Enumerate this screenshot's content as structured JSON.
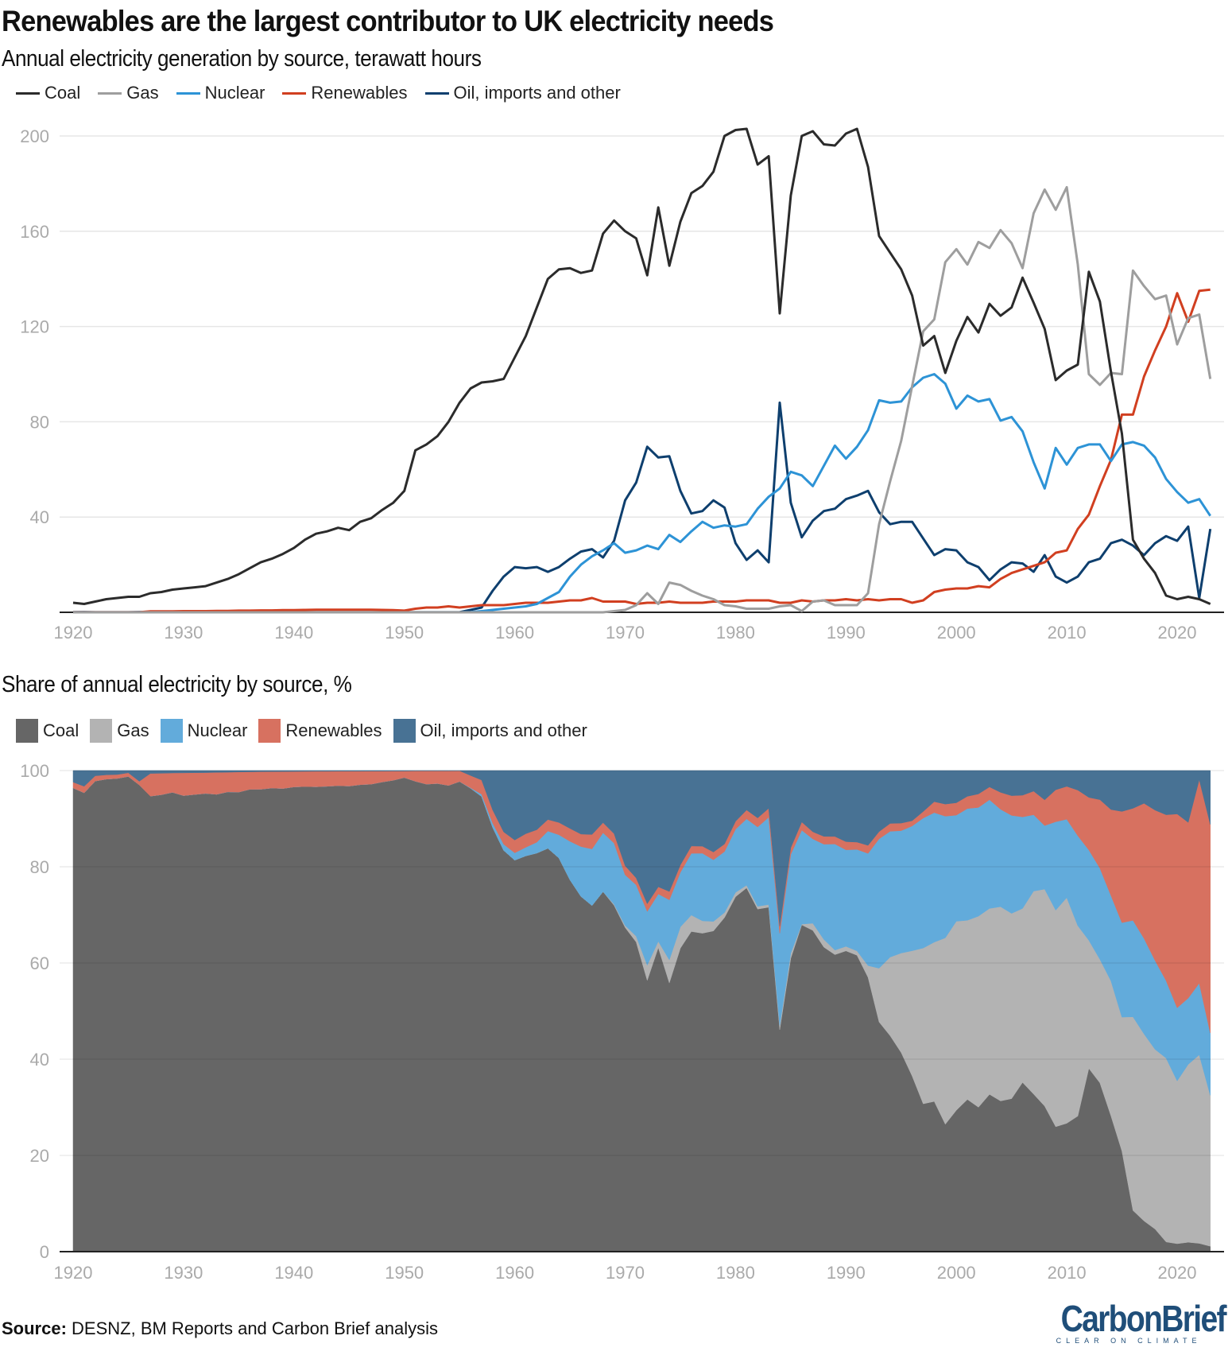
{
  "title": "Renewables are the largest contributor to UK electricity needs",
  "source_label": "Source:",
  "source_text": " DESNZ, BM Reports and Carbon Brief analysis",
  "logo": {
    "text": "CarbonBrief",
    "tagline": "CLEAR ON CLIMATE"
  },
  "colors": {
    "line": {
      "coal": "#2b2b2b",
      "gas": "#9e9e9e",
      "nuclear": "#2d93d6",
      "renewables": "#d13f20",
      "oil": "#0e3f6e"
    },
    "area": {
      "coal": "#666666",
      "gas": "#b3b3b3",
      "nuclear": "#62abdb",
      "renewables": "#d77160",
      "oil": "#487294"
    }
  },
  "chart_data": [
    {
      "type": "line",
      "title": "Annual electricity generation by source, terawatt hours",
      "x_start": 1920,
      "x_end": 2023,
      "xticks": [
        1920,
        1930,
        1940,
        1950,
        1960,
        1970,
        1980,
        1990,
        2000,
        2010,
        2020
      ],
      "yticks": [
        40,
        80,
        120,
        160,
        200
      ],
      "ylim": [
        0,
        200
      ],
      "grid": true,
      "legend_placement": "top-left",
      "series": [
        {
          "key": "coal",
          "name": "Coal",
          "values": [
            4,
            3.5,
            4.5,
            5.5,
            6,
            6.5,
            6.5,
            8,
            8.5,
            9.5,
            10,
            10.5,
            11,
            12.5,
            14,
            16,
            18.5,
            21,
            22.5,
            24.5,
            27,
            30.5,
            33,
            34,
            35.5,
            34.5,
            38,
            39.5,
            43,
            46,
            51,
            68,
            70.5,
            74,
            80,
            88,
            94,
            96.5,
            97,
            98,
            107,
            116,
            128,
            140,
            144,
            144.5,
            142.5,
            143.5,
            159,
            164.5,
            160,
            157,
            141.5,
            170,
            145.5,
            164,
            176,
            179,
            185,
            200,
            202.5,
            203,
            188,
            191.5,
            125.5,
            175,
            200,
            202,
            196.5,
            196,
            201,
            203,
            187,
            158,
            151,
            144,
            133,
            112,
            116,
            100.5,
            114,
            124,
            117.5,
            129.5,
            124.5,
            128,
            140.5,
            130,
            119,
            97.5,
            101.5,
            104,
            143,
            130.5,
            101,
            75,
            30.5,
            22.5,
            16.5,
            7,
            5.5,
            6.5,
            5.5,
            3.5
          ]
        },
        {
          "key": "gas",
          "name": "Gas",
          "values": [
            0,
            0,
            0,
            0,
            0,
            0,
            0,
            0,
            0,
            0,
            0,
            0,
            0,
            0,
            0,
            0,
            0,
            0,
            0,
            0,
            0,
            0,
            0,
            0,
            0,
            0,
            0,
            0,
            0,
            0,
            0,
            0,
            0,
            0,
            0,
            0,
            0,
            0,
            0,
            0,
            0,
            0,
            0,
            0,
            0,
            0,
            0,
            0,
            0,
            0.5,
            1,
            3,
            8,
            3.5,
            12.5,
            11.5,
            9,
            7,
            5.5,
            3,
            2.5,
            1.5,
            1.5,
            1.5,
            2.5,
            3,
            0.5,
            4.5,
            5,
            3,
            3,
            3,
            8,
            37,
            55,
            72,
            95,
            118,
            123,
            147,
            152.5,
            146,
            155.5,
            153,
            160.5,
            155,
            144.5,
            167.5,
            177.5,
            169,
            178.5,
            146,
            100,
            95.5,
            100.5,
            100,
            143.5,
            137,
            131.5,
            133,
            112.5,
            123.5,
            125,
            98
          ]
        },
        {
          "key": "nuclear",
          "name": "Nuclear",
          "values": [
            0,
            0,
            0,
            0,
            0,
            0,
            0,
            0,
            0,
            0,
            0,
            0,
            0,
            0,
            0,
            0,
            0,
            0,
            0,
            0,
            0,
            0,
            0,
            0,
            0,
            0,
            0,
            0,
            0,
            0,
            0,
            0,
            0,
            0,
            0,
            0,
            0.1,
            0.5,
            1,
            1.5,
            2,
            2.5,
            3.5,
            6,
            8.5,
            15,
            20,
            23.5,
            26,
            29,
            25,
            26,
            28,
            26.5,
            32.5,
            29.5,
            34,
            38,
            35.5,
            36.5,
            36,
            37,
            43.5,
            48.5,
            52,
            59,
            57.5,
            53,
            61.5,
            70,
            64.5,
            69.5,
            76.5,
            89,
            88,
            88.5,
            94.5,
            98.5,
            100,
            96,
            85.5,
            91,
            88.5,
            89.5,
            80.5,
            82,
            76,
            63,
            52,
            69,
            62,
            69,
            70.5,
            70.5,
            63.5,
            70.5,
            71.5,
            70,
            65,
            56,
            50.5,
            46,
            47.5,
            40.5
          ]
        },
        {
          "key": "renewables",
          "name": "Renewables",
          "values": [
            0.05,
            0.05,
            0.05,
            0.05,
            0.05,
            0.05,
            0.05,
            0.4,
            0.4,
            0.4,
            0.5,
            0.5,
            0.5,
            0.6,
            0.6,
            0.7,
            0.7,
            0.8,
            0.8,
            0.9,
            0.9,
            1,
            1.1,
            1.1,
            1.1,
            1.1,
            1.1,
            1.1,
            1,
            0.9,
            0.7,
            1.5,
            2,
            2,
            2.5,
            2,
            2.5,
            3,
            3,
            3,
            3.5,
            4,
            4,
            4,
            4.5,
            5,
            5,
            6,
            4.5,
            4.5,
            4.5,
            3.5,
            4,
            4,
            4.5,
            4,
            4,
            4,
            4.5,
            4.5,
            4.5,
            5,
            5,
            5,
            4,
            4,
            5,
            4.5,
            5,
            5,
            5.5,
            5,
            5.5,
            5,
            5.5,
            5.5,
            4,
            5,
            8.5,
            9.5,
            10,
            10,
            11,
            10.5,
            14,
            16.5,
            18,
            19.5,
            21,
            25,
            26,
            35,
            41,
            53,
            64,
            83,
            83,
            99,
            110,
            120,
            134,
            122,
            135,
            135.5
          ]
        },
        {
          "key": "oil",
          "name": "Oil, imports and other",
          "values": [
            0.1,
            0.12,
            0.05,
            0.05,
            0.05,
            0.03,
            0.15,
            0.05,
            0.05,
            0.05,
            0.05,
            0.05,
            0.05,
            0.05,
            0.05,
            0.05,
            0.05,
            0.05,
            0.05,
            0.05,
            0.05,
            0.05,
            0.05,
            0.05,
            0.05,
            0.05,
            0.05,
            0.05,
            0.05,
            0.05,
            0.05,
            0.05,
            0.05,
            0.05,
            0.05,
            0.05,
            1,
            2,
            9,
            15,
            19,
            18.5,
            19,
            17,
            19,
            22.5,
            25.5,
            26.5,
            23,
            30,
            47,
            54.5,
            69.5,
            65,
            65.5,
            51,
            41.5,
            42.5,
            47,
            44,
            29,
            22,
            26,
            21,
            88,
            46,
            31.5,
            38.5,
            42.5,
            43.5,
            47.5,
            49,
            51,
            42,
            37,
            38,
            38,
            31,
            24,
            26.5,
            26,
            21,
            19,
            13.5,
            18,
            21,
            20.5,
            17,
            24,
            15,
            12.5,
            15,
            21,
            22.5,
            29,
            30.5,
            28,
            24,
            29,
            32,
            30,
            36,
            6,
            35
          ]
        }
      ]
    },
    {
      "type": "area",
      "stacked": true,
      "normalized": true,
      "title": "Share of annual electricity by source, %",
      "xticks": [
        1920,
        1930,
        1940,
        1950,
        1960,
        1970,
        1980,
        1990,
        2000,
        2010,
        2020
      ],
      "yticks": [
        0,
        20,
        40,
        60,
        80,
        100
      ],
      "ylim": [
        0,
        100
      ],
      "grid": true,
      "legend_placement": "top-left",
      "series_order": [
        "coal",
        "gas",
        "nuclear",
        "renewables",
        "oil"
      ],
      "legend": [
        "Coal",
        "Gas",
        "Nuclear",
        "Renewables",
        "Oil, imports and other"
      ]
    }
  ]
}
